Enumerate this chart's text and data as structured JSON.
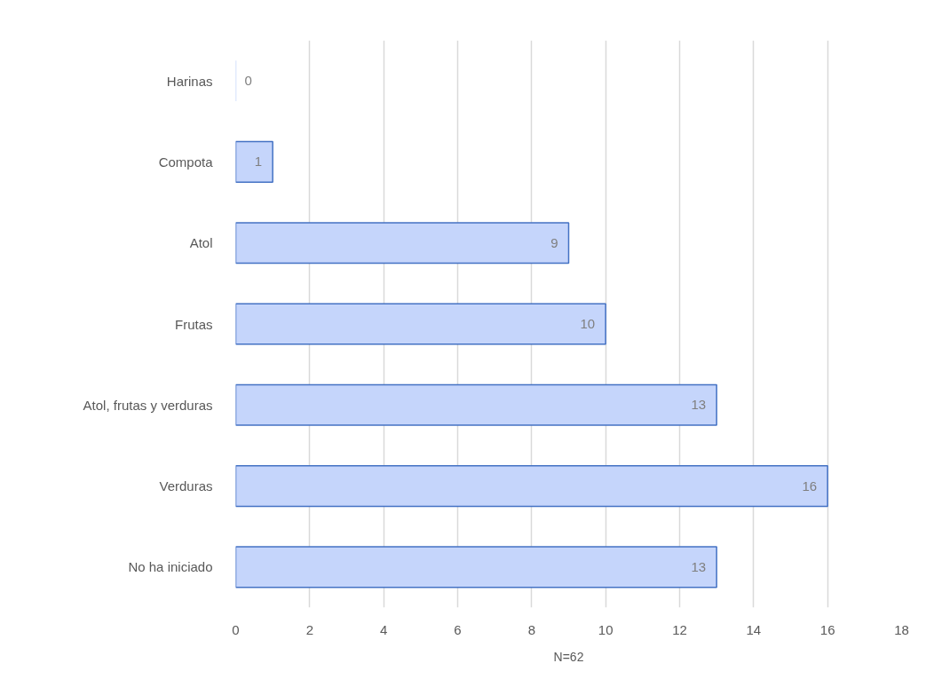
{
  "chart_data": {
    "type": "bar",
    "orientation": "horizontal",
    "xlabel": "N=62",
    "categories": [
      "Harinas",
      "Compota",
      "Atol",
      "Frutas",
      "Atol, frutas y verduras",
      "Verduras",
      "No ha iniciado"
    ],
    "values": [
      0,
      1,
      9,
      10,
      13,
      16,
      13
    ],
    "color": "#c5d5fb",
    "xlim": [
      0,
      18
    ],
    "xticks": [
      0,
      2,
      4,
      6,
      8,
      10,
      12,
      14,
      16,
      18
    ],
    "grid": "x",
    "data_labels": true
  }
}
